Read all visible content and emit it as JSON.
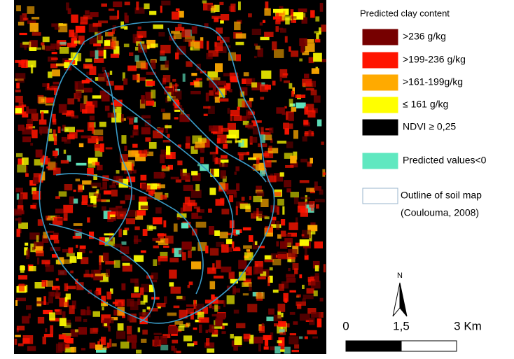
{
  "legend": {
    "title": "Predicted clay content",
    "items": [
      {
        "label": ">236 g/kg",
        "color": "#760000"
      },
      {
        "label": ">199-236 g/kg",
        "color": "#ff1400"
      },
      {
        "label": ">161-199g/kg",
        "color": "#ffaa00"
      },
      {
        "label": "≤ 161 g/kg",
        "color": "#ffff00"
      },
      {
        "label": "NDVI ≥ 0,25",
        "color": "#000000"
      },
      {
        "label": "Predicted values<0",
        "color": "#60e8c0"
      },
      {
        "lines": [
          "Outline of soil map",
          "(Coulouma, 2008)"
        ],
        "color": "#ffffff"
      }
    ]
  },
  "north_arrow": {
    "label": "N"
  },
  "scale_bar": {
    "labels": [
      "0",
      "1,5",
      "3 Km"
    ]
  }
}
